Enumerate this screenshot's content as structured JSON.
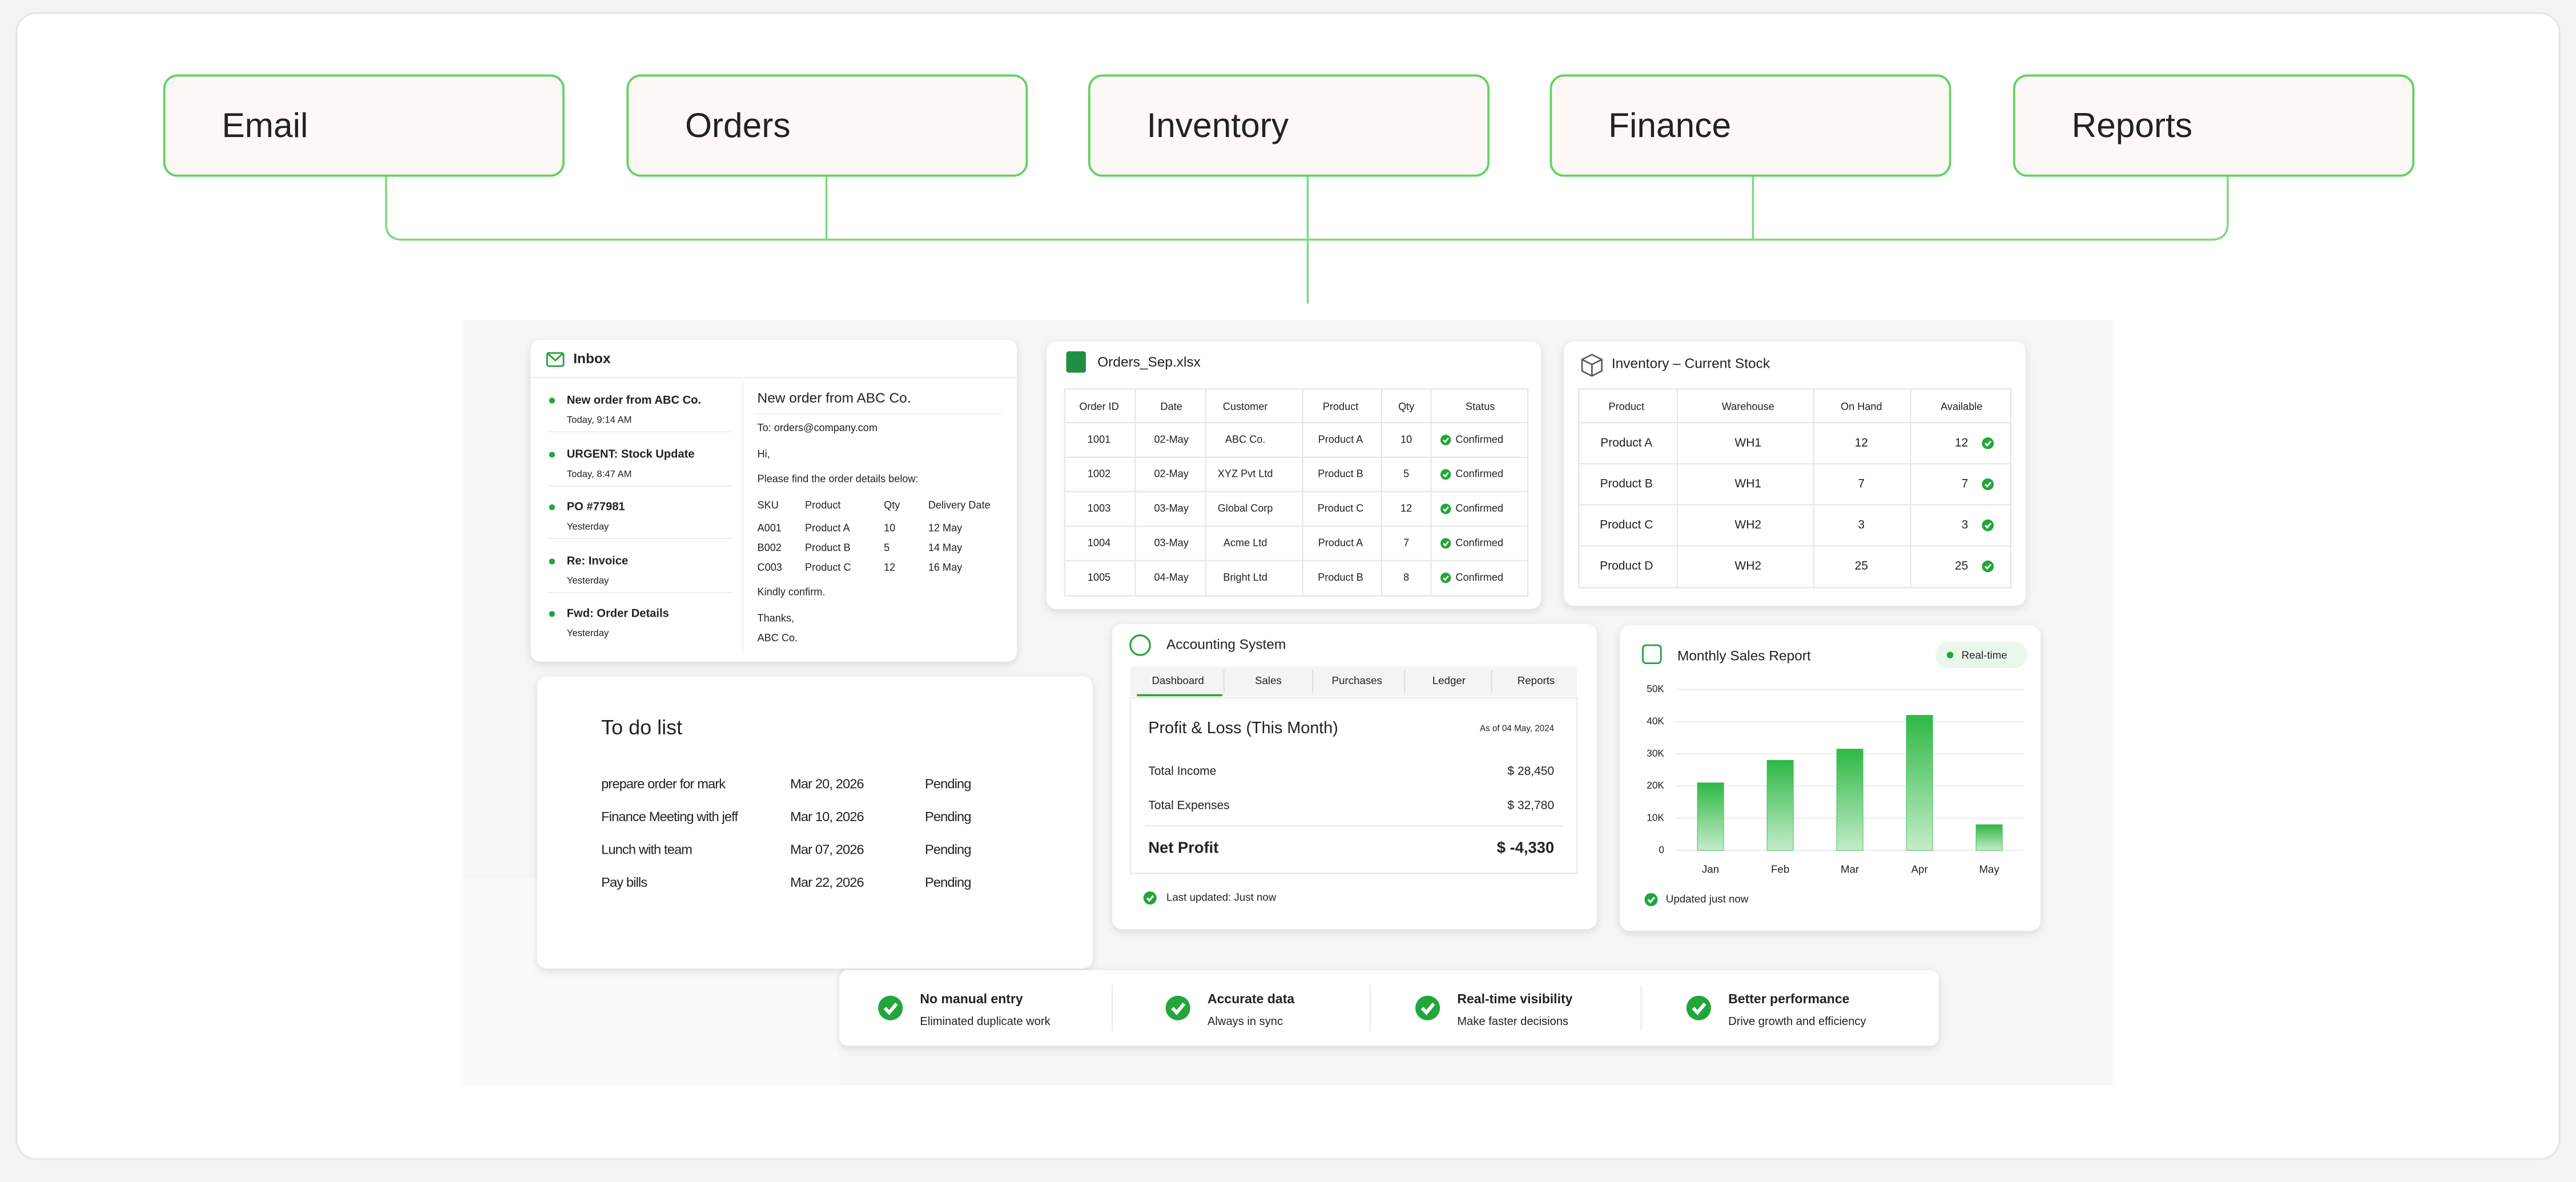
{
  "top_tabs": [
    "Email",
    "Orders",
    "Inventory",
    "Finance",
    "Reports"
  ],
  "inbox": {
    "title": "Inbox",
    "messages": [
      {
        "subject": "New order from ABC Co.",
        "time": "Today, 9:14 AM"
      },
      {
        "subject": "URGENT: Stock Update",
        "time": "Today, 8:47 AM"
      },
      {
        "subject": "PO #77981",
        "time": "Yesterday"
      },
      {
        "subject": "Re: Invoice",
        "time": "Yesterday"
      },
      {
        "subject": "Fwd: Order Details",
        "time": "Yesterday"
      }
    ],
    "email": {
      "subject": "New order from ABC Co.",
      "to": "To: orders@company.com",
      "greeting": "Hi,",
      "body": "Please find the order details below:",
      "columns": [
        "SKU",
        "Product",
        "Qty",
        "Delivery Date"
      ],
      "rows": [
        [
          "A001",
          "Product A",
          "10",
          "12 May"
        ],
        [
          "B002",
          "Product B",
          "5",
          "14 May"
        ],
        [
          "C003",
          "Product C",
          "12",
          "16 May"
        ]
      ],
      "closing": "Kindly confirm.",
      "signoff": "Thanks,",
      "sender": "ABC Co."
    }
  },
  "orders": {
    "title": "Orders_Sep.xlsx",
    "columns": [
      "Order ID",
      "Date",
      "Customer",
      "Product",
      "Qty",
      "Status"
    ],
    "rows": [
      [
        "1001",
        "02-May",
        "ABC Co.",
        "Product A",
        "10",
        "Confirmed"
      ],
      [
        "1002",
        "02-May",
        "XYZ Pvt Ltd",
        "Product B",
        "5",
        "Confirmed"
      ],
      [
        "1003",
        "03-May",
        "Global Corp",
        "Product C",
        "12",
        "Confirmed"
      ],
      [
        "1004",
        "03-May",
        "Acme Ltd",
        "Product A",
        "7",
        "Confirmed"
      ],
      [
        "1005",
        "04-May",
        "Bright Ltd",
        "Product B",
        "8",
        "Confirmed"
      ]
    ]
  },
  "inventory": {
    "title": "Inventory – Current Stock",
    "columns": [
      "Product",
      "Warehouse",
      "On Hand",
      "Available"
    ],
    "rows": [
      [
        "Product A",
        "WH1",
        "12",
        "12"
      ],
      [
        "Product B",
        "WH1",
        "7",
        "7"
      ],
      [
        "Product C",
        "WH2",
        "3",
        "3"
      ],
      [
        "Product D",
        "WH2",
        "25",
        "25"
      ]
    ]
  },
  "todo": {
    "title": "To do list",
    "items": [
      [
        "prepare order for mark",
        "Mar 20, 2026",
        "Pending"
      ],
      [
        "Finance Meeting with jeff",
        "Mar 10, 2026",
        "Pending"
      ],
      [
        "Lunch with team",
        "Mar 07, 2026",
        "Pending"
      ],
      [
        "Pay bills",
        "Mar 22, 2026",
        "Pending"
      ]
    ]
  },
  "accounting": {
    "title": "Accounting System",
    "tabs": [
      "Dashboard",
      "Sales",
      "Purchases",
      "Ledger",
      "Reports"
    ],
    "heading": "Profit & Loss (This Month)",
    "as_of": "As of 04 May, 2024",
    "rows": [
      [
        "Total Income",
        "$ 28,450"
      ],
      [
        "Total Expenses",
        "$ 32,780"
      ]
    ],
    "net": [
      "Net Profit",
      "$ -4,330"
    ],
    "updated": "Last updated: Just now"
  },
  "chart_data": {
    "type": "bar",
    "title": "Monthly Sales Report",
    "badge": "Real-time",
    "note": "Updated just now",
    "categories": [
      "Jan",
      "Feb",
      "Mar",
      "Apr",
      "May"
    ],
    "values": [
      21000,
      28000,
      31500,
      42000,
      8000
    ],
    "color": "#2fb845",
    "ylim": [
      0,
      50000
    ],
    "yticks": [
      0,
      {
        "value": 10000,
        "label": "10K"
      },
      {
        "value": 20000,
        "label": "20K"
      },
      {
        "value": 30000,
        "label": "30K"
      },
      {
        "value": 40000,
        "label": "40K"
      },
      {
        "value": 50000,
        "label": "50K"
      }
    ],
    "grid": true
  },
  "benefits": [
    {
      "title": "No manual entry",
      "text": "Eliminated duplicate work"
    },
    {
      "title": "Accurate data",
      "text": "Always in sync"
    },
    {
      "title": "Real-time visibility",
      "text": "Make faster decisions"
    },
    {
      "title": "Better performance",
      "text": "Drive growth and efficiency"
    }
  ]
}
